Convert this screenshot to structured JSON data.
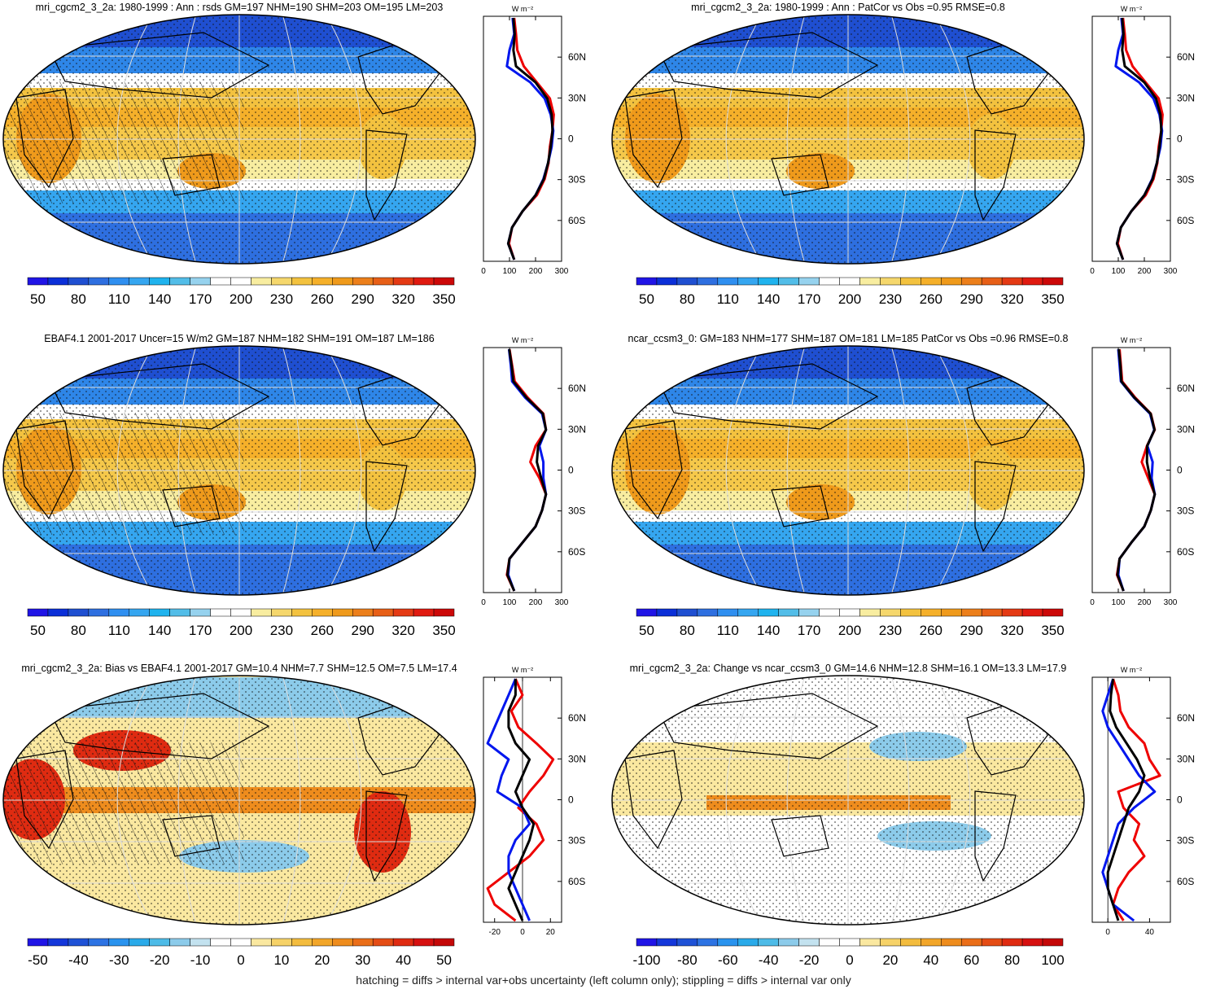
{
  "footer": "hatching = diffs > internal var+obs uncertainty (left column only); stippling = diffs > internal var only",
  "colors": {
    "scale_abs": [
      "#2014e6",
      "#0b2fd8",
      "#1f4fd1",
      "#2e6fe0",
      "#2f8ff0",
      "#35a6f0",
      "#1fb3ee",
      "#52bde8",
      "#96d2ee",
      "#ffffff",
      "#ffffff",
      "#f8eda0",
      "#f5d76c",
      "#f3c23f",
      "#f5b02a",
      "#ef9a1b",
      "#ec7f1b",
      "#e75f17",
      "#e43a14",
      "#e01a10",
      "#cc0808"
    ],
    "profile_model": "#ee0000",
    "profile_obs": "#0016ee",
    "profile_mean": "#000000",
    "gridline": "#dcdcdc"
  },
  "panels": [
    {
      "id": "a",
      "title": "mri_cgcm2_3_2a: 1980-1999 : Ann : rsds GM=197 NHM=190 SHM=203 OM=195 LM=203",
      "colorbar_labels": [
        "50",
        "80",
        "110",
        "140",
        "170",
        "200",
        "230",
        "260",
        "290",
        "320",
        "350"
      ],
      "colorbar_type": "abs",
      "profile": {
        "unit": "W m⁻²",
        "lat_labels": [
          "60N",
          "30N",
          "0",
          "30S",
          "60S"
        ],
        "xticks": [
          "0",
          "100",
          "200",
          "300"
        ],
        "xlim": [
          0,
          300
        ],
        "model_x": [
          118,
          125,
          130,
          155,
          205,
          255,
          270,
          265,
          255,
          250,
          235,
          205,
          150,
          110,
          98,
          118
        ],
        "obs_x": [
          112,
          118,
          100,
          90,
          180,
          235,
          258,
          268,
          262,
          248,
          230,
          200,
          150,
          110,
          95,
          118
        ],
        "mean_x": [
          115,
          120,
          115,
          125,
          200,
          245,
          262,
          265,
          258,
          248,
          232,
          200,
          150,
          110,
          95,
          118
        ]
      },
      "hatching": true
    },
    {
      "id": "b",
      "title": "mri_cgcm2_3_2a: 1980-1999 : Ann : PatCor vs Obs =0.95 RMSE=0.8",
      "colorbar_labels": [
        "50",
        "80",
        "110",
        "140",
        "170",
        "200",
        "230",
        "260",
        "290",
        "320",
        "350"
      ],
      "colorbar_type": "abs",
      "profile": {
        "unit": "W m⁻²",
        "lat_labels": [
          "60N",
          "30N",
          "0",
          "30S",
          "60S"
        ],
        "xticks": [
          "0",
          "100",
          "200",
          "300"
        ],
        "xlim": [
          0,
          300
        ],
        "model_x": [
          118,
          125,
          130,
          155,
          205,
          255,
          270,
          265,
          255,
          250,
          235,
          205,
          150,
          110,
          98,
          118
        ],
        "obs_x": [
          112,
          118,
          100,
          90,
          180,
          235,
          258,
          268,
          262,
          248,
          230,
          200,
          150,
          110,
          95,
          118
        ],
        "mean_x": [
          115,
          120,
          115,
          125,
          200,
          245,
          262,
          265,
          258,
          248,
          232,
          200,
          150,
          110,
          95,
          118
        ]
      },
      "hatching": false
    },
    {
      "id": "c",
      "title": "EBAF4.1 2001-2017 Uncer=15 W/m2 GM=187 NHM=182 SHM=191 OM=187 LM=186",
      "colorbar_labels": [
        "50",
        "80",
        "110",
        "140",
        "170",
        "200",
        "230",
        "260",
        "290",
        "320",
        "350"
      ],
      "colorbar_type": "abs",
      "profile": {
        "unit": "W m⁻²",
        "lat_labels": [
          "60N",
          "30N",
          "0",
          "30S",
          "60S"
        ],
        "xticks": [
          "0",
          "100",
          "200",
          "300"
        ],
        "xlim": [
          0,
          300
        ],
        "model_x": [
          100,
          110,
          120,
          170,
          230,
          240,
          200,
          180,
          215,
          240,
          225,
          200,
          150,
          100,
          90,
          118
        ],
        "obs_x": [
          98,
          105,
          110,
          160,
          225,
          240,
          215,
          230,
          230,
          240,
          225,
          200,
          150,
          100,
          95,
          118
        ],
        "mean_x": [
          99,
          108,
          115,
          165,
          228,
          240,
          210,
          205,
          222,
          240,
          225,
          200,
          150,
          100,
          92,
          118
        ]
      },
      "hatching": true
    },
    {
      "id": "d",
      "title": "ncar_ccsm3_0: GM=183 NHM=177 SHM=187 OM=181 LM=185 PatCor vs Obs =0.96 RMSE=0.8",
      "colorbar_labels": [
        "50",
        "80",
        "110",
        "140",
        "170",
        "200",
        "230",
        "260",
        "290",
        "320",
        "350"
      ],
      "colorbar_type": "abs",
      "profile": {
        "unit": "W m⁻²",
        "lat_labels": [
          "60N",
          "30N",
          "0",
          "30S",
          "60S"
        ],
        "xticks": [
          "0",
          "100",
          "200",
          "300"
        ],
        "xlim": [
          0,
          300
        ],
        "model_x": [
          105,
          110,
          115,
          165,
          225,
          240,
          210,
          190,
          215,
          240,
          225,
          200,
          150,
          105,
          95,
          120
        ],
        "obs_x": [
          100,
          105,
          110,
          160,
          222,
          238,
          212,
          232,
          228,
          240,
          225,
          200,
          150,
          105,
          100,
          120
        ],
        "mean_x": [
          102,
          108,
          112,
          162,
          224,
          239,
          211,
          210,
          222,
          240,
          225,
          200,
          150,
          105,
          97,
          120
        ]
      },
      "hatching": false
    },
    {
      "id": "e",
      "title": "mri_cgcm2_3_2a: Bias vs EBAF4.1 2001-2017 GM=10.4 NHM=7.7 SHM=12.5 OM=7.5 LM=17.4",
      "colorbar_labels": [
        "-50",
        "-40",
        "-30",
        "-20",
        "-10",
        "0",
        "10",
        "20",
        "30",
        "40",
        "50"
      ],
      "colorbar_type": "diff",
      "profile": {
        "unit": "W m⁻²",
        "lat_labels": [
          "60N",
          "30N",
          "0",
          "30S",
          "60S"
        ],
        "xticks": [
          "-20",
          "0",
          "20"
        ],
        "xlim": [
          -28,
          28
        ],
        "model_x": [
          -5,
          0,
          -8,
          -3,
          10,
          22,
          15,
          5,
          -3,
          10,
          15,
          5,
          -10,
          -25,
          -20,
          -5
        ],
        "obs_x": [
          -5,
          -10,
          -15,
          -20,
          -25,
          -10,
          -15,
          -18,
          0,
          5,
          -5,
          -10,
          -10,
          -5,
          0,
          5
        ],
        "mean_x": [
          -5,
          -5,
          -10,
          -10,
          -5,
          5,
          0,
          -5,
          0,
          8,
          5,
          0,
          -5,
          -10,
          -5,
          0
        ]
      },
      "hatching": true
    },
    {
      "id": "f",
      "title": "mri_cgcm2_3_2a: Change vs ncar_ccsm3_0 GM=14.6 NHM=12.8 SHM=16.1 OM=13.3 LM=17.9",
      "colorbar_labels": [
        "-100",
        "-80",
        "-60",
        "-40",
        "-20",
        "0",
        "20",
        "40",
        "60",
        "80",
        "100"
      ],
      "colorbar_type": "diff",
      "profile": {
        "unit": "W m⁻²",
        "lat_labels": [
          "60N",
          "30N",
          "0",
          "30S",
          "60S"
        ],
        "xticks": [
          "0",
          "40"
        ],
        "xlim": [
          -15,
          60
        ],
        "model_x": [
          5,
          10,
          12,
          20,
          35,
          40,
          50,
          10,
          15,
          30,
          25,
          35,
          20,
          10,
          5,
          15
        ],
        "obs_x": [
          5,
          0,
          -5,
          0,
          10,
          20,
          30,
          45,
          25,
          10,
          5,
          0,
          -5,
          0,
          5,
          25
        ],
        "mean_x": [
          5,
          3,
          2,
          8,
          18,
          28,
          35,
          30,
          20,
          15,
          10,
          5,
          0,
          0,
          5,
          10
        ]
      },
      "hatching": false
    }
  ]
}
